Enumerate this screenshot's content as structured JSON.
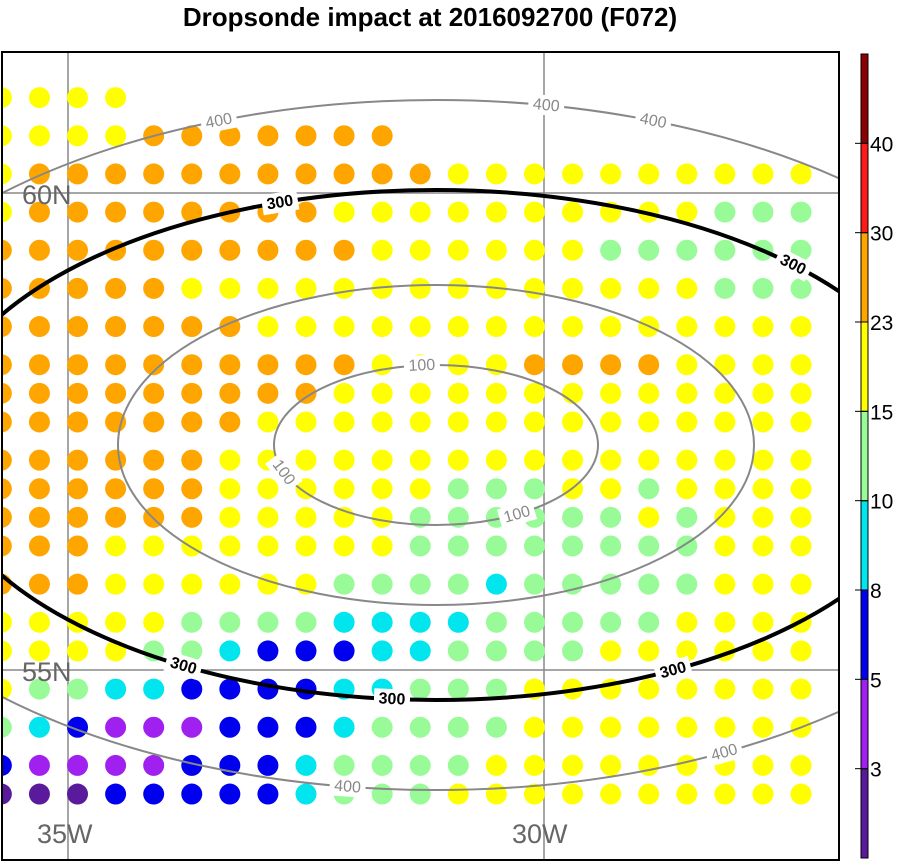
{
  "chart_data": {
    "type": "scatter",
    "title": "Dropsonde impact at 2016092700 (F072)",
    "lat_labels": [
      "60N",
      "55N"
    ],
    "lon_labels": [
      "35W",
      "30W"
    ],
    "contours": [
      {
        "value": 100,
        "label": "100",
        "color": "#888888"
      },
      {
        "value": 200,
        "label": "",
        "color": "#888888"
      },
      {
        "value": 300,
        "label": "300",
        "color": "#000000"
      },
      {
        "value": 400,
        "label": "400",
        "color": "#888888"
      }
    ],
    "colorbar": {
      "levels": [
        "3",
        "5",
        "8",
        "10",
        "15",
        "23",
        "30",
        "40"
      ],
      "colors": [
        "#5a1a9c",
        "#a020f0",
        "#0000ee",
        "#00e5ee",
        "#98fb98",
        "#ffff00",
        "#ffa500",
        "#ff1a1a",
        "#8b0000"
      ]
    },
    "columns": [
      -35.7,
      -35.3,
      -34.9,
      -34.5,
      -34.1,
      -33.7,
      -33.3,
      -32.9,
      -32.5,
      -32.1,
      -31.7,
      -31.3,
      -30.9,
      -30.5,
      -30.1,
      -29.7,
      -29.3,
      -28.9,
      -28.5,
      -28.1,
      -27.7,
      -27.3
    ],
    "rows": [
      {
        "lat": 61.0,
        "cats": "5555"
      },
      {
        "lat": 60.6,
        "cats": "55556666666"
      },
      {
        "lat": 60.2,
        "cats": "5666666666665555555555"
      },
      {
        "lat": 59.8,
        "cats": "5666666665555555555444"
      },
      {
        "lat": 59.4,
        "cats": "6666666666555555444444"
      },
      {
        "lat": 59.0,
        "cats": "6666655555555555555444"
      },
      {
        "lat": 58.6,
        "cats": "6666666555555555555555"
      },
      {
        "lat": 58.2,
        "cats": "6666666666555566665555"
      },
      {
        "lat": 57.9,
        "cats": "6666666665555555555555"
      },
      {
        "lat": 57.6,
        "cats": "6666666555555555555555"
      },
      {
        "lat": 57.2,
        "cats": "6666665555555555555555"
      },
      {
        "lat": 56.9,
        "cats": "6666665555554445545555"
      },
      {
        "lat": 56.6,
        "cats": "6666665555544444454555"
      },
      {
        "lat": 56.3,
        "cats": "6665555555544444444555"
      },
      {
        "lat": 55.9,
        "cats": "6665555554444344444555"
      },
      {
        "lat": 55.5,
        "cats": "5555544443333444445555"
      },
      {
        "lat": 55.2,
        "cats": "5555443222334444555555"
      },
      {
        "lat": 54.8,
        "cats": "5443322223344455555555"
      },
      {
        "lat": 54.4,
        "cats": "4321112223444455555555"
      },
      {
        "lat": 54.0,
        "cats": "2111122234444555555555"
      },
      {
        "lat": 53.7,
        "cats": "0002222234445555555555"
      }
    ]
  }
}
